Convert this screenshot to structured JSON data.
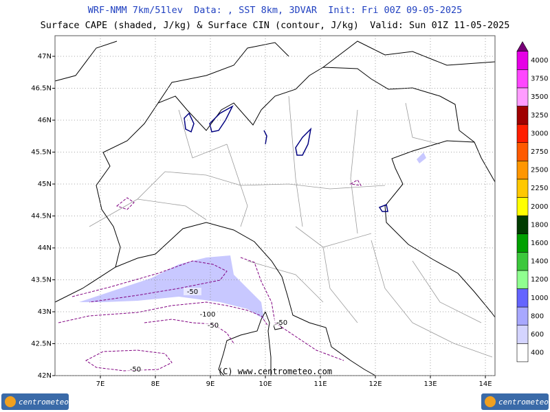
{
  "header": {
    "title": "WRF-NMM 7km/51lev  Data: , SST 8km, 3DVAR  Init: Fri 00Z 09-05-2025",
    "subtitle": "Surface CAPE (shaded, J/kg) & Surface CIN (contour, J/kg)  Valid: Sun 01Z 11-05-2025"
  },
  "map": {
    "lon_ticks": [
      {
        "value": 7,
        "label": "7E"
      },
      {
        "value": 8,
        "label": "8E"
      },
      {
        "value": 9,
        "label": "9E"
      },
      {
        "value": 10,
        "label": "10E"
      },
      {
        "value": 11,
        "label": "11E"
      },
      {
        "value": 12,
        "label": "12E"
      },
      {
        "value": 13,
        "label": "13E"
      },
      {
        "value": 14,
        "label": "14E"
      }
    ],
    "lat_ticks": [
      {
        "value": 42,
        "label": "42N"
      },
      {
        "value": 42.5,
        "label": "42.5N"
      },
      {
        "value": 43,
        "label": "43N"
      },
      {
        "value": 43.5,
        "label": "43.5N"
      },
      {
        "value": 44,
        "label": "44N"
      },
      {
        "value": 44.5,
        "label": "44.5N"
      },
      {
        "value": 45,
        "label": "45N"
      },
      {
        "value": 45.5,
        "label": "45.5N"
      },
      {
        "value": 46,
        "label": "46N"
      },
      {
        "value": 46.5,
        "label": "46.5N"
      },
      {
        "value": 47,
        "label": "47N"
      }
    ],
    "contour_labels": [
      "-50",
      "-100",
      "-50",
      "-50",
      "-50"
    ],
    "copyright": "(C) www.centrometeo.com"
  },
  "colorbar": {
    "levels": [
      400,
      600,
      800,
      1000,
      1200,
      1400,
      1600,
      1800,
      2000,
      2250,
      2500,
      2750,
      3000,
      3250,
      3500,
      3750,
      4000
    ],
    "colors": [
      "#ffffff",
      "#d4d4ff",
      "#a8a8ff",
      "#6464ff",
      "#90ff90",
      "#3cc83c",
      "#00a000",
      "#003c00",
      "#ffff00",
      "#ffc800",
      "#ff9600",
      "#ff5a00",
      "#ff1e00",
      "#a00000",
      "#ff9cff",
      "#ff46ff",
      "#e600e6"
    ],
    "top_color": "#780078"
  },
  "logos": {
    "left": "centrometeo",
    "right": "centrometeo"
  }
}
